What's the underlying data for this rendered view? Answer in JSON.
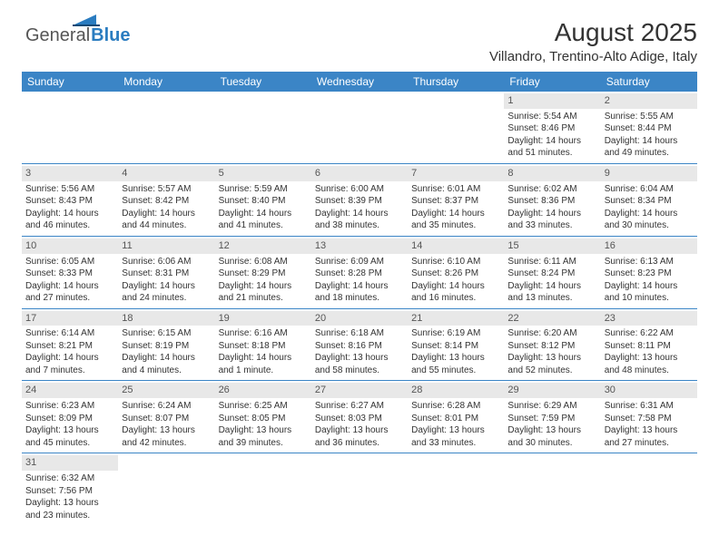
{
  "logo": {
    "part1": "General",
    "part2": "Blue"
  },
  "header": {
    "title": "August 2025",
    "subtitle": "Villandro, Trentino-Alto Adige, Italy"
  },
  "colors": {
    "header_bg": "#3b85c6",
    "header_text": "#ffffff",
    "daynum_bg": "#e8e8e8",
    "border": "#3b85c6",
    "logo_blue": "#2a7cc0"
  },
  "weekdays": [
    "Sunday",
    "Monday",
    "Tuesday",
    "Wednesday",
    "Thursday",
    "Friday",
    "Saturday"
  ],
  "weeks": [
    [
      null,
      null,
      null,
      null,
      null,
      {
        "day": "1",
        "sunrise": "Sunrise: 5:54 AM",
        "sunset": "Sunset: 8:46 PM",
        "daylight": "Daylight: 14 hours and 51 minutes."
      },
      {
        "day": "2",
        "sunrise": "Sunrise: 5:55 AM",
        "sunset": "Sunset: 8:44 PM",
        "daylight": "Daylight: 14 hours and 49 minutes."
      }
    ],
    [
      {
        "day": "3",
        "sunrise": "Sunrise: 5:56 AM",
        "sunset": "Sunset: 8:43 PM",
        "daylight": "Daylight: 14 hours and 46 minutes."
      },
      {
        "day": "4",
        "sunrise": "Sunrise: 5:57 AM",
        "sunset": "Sunset: 8:42 PM",
        "daylight": "Daylight: 14 hours and 44 minutes."
      },
      {
        "day": "5",
        "sunrise": "Sunrise: 5:59 AM",
        "sunset": "Sunset: 8:40 PM",
        "daylight": "Daylight: 14 hours and 41 minutes."
      },
      {
        "day": "6",
        "sunrise": "Sunrise: 6:00 AM",
        "sunset": "Sunset: 8:39 PM",
        "daylight": "Daylight: 14 hours and 38 minutes."
      },
      {
        "day": "7",
        "sunrise": "Sunrise: 6:01 AM",
        "sunset": "Sunset: 8:37 PM",
        "daylight": "Daylight: 14 hours and 35 minutes."
      },
      {
        "day": "8",
        "sunrise": "Sunrise: 6:02 AM",
        "sunset": "Sunset: 8:36 PM",
        "daylight": "Daylight: 14 hours and 33 minutes."
      },
      {
        "day": "9",
        "sunrise": "Sunrise: 6:04 AM",
        "sunset": "Sunset: 8:34 PM",
        "daylight": "Daylight: 14 hours and 30 minutes."
      }
    ],
    [
      {
        "day": "10",
        "sunrise": "Sunrise: 6:05 AM",
        "sunset": "Sunset: 8:33 PM",
        "daylight": "Daylight: 14 hours and 27 minutes."
      },
      {
        "day": "11",
        "sunrise": "Sunrise: 6:06 AM",
        "sunset": "Sunset: 8:31 PM",
        "daylight": "Daylight: 14 hours and 24 minutes."
      },
      {
        "day": "12",
        "sunrise": "Sunrise: 6:08 AM",
        "sunset": "Sunset: 8:29 PM",
        "daylight": "Daylight: 14 hours and 21 minutes."
      },
      {
        "day": "13",
        "sunrise": "Sunrise: 6:09 AM",
        "sunset": "Sunset: 8:28 PM",
        "daylight": "Daylight: 14 hours and 18 minutes."
      },
      {
        "day": "14",
        "sunrise": "Sunrise: 6:10 AM",
        "sunset": "Sunset: 8:26 PM",
        "daylight": "Daylight: 14 hours and 16 minutes."
      },
      {
        "day": "15",
        "sunrise": "Sunrise: 6:11 AM",
        "sunset": "Sunset: 8:24 PM",
        "daylight": "Daylight: 14 hours and 13 minutes."
      },
      {
        "day": "16",
        "sunrise": "Sunrise: 6:13 AM",
        "sunset": "Sunset: 8:23 PM",
        "daylight": "Daylight: 14 hours and 10 minutes."
      }
    ],
    [
      {
        "day": "17",
        "sunrise": "Sunrise: 6:14 AM",
        "sunset": "Sunset: 8:21 PM",
        "daylight": "Daylight: 14 hours and 7 minutes."
      },
      {
        "day": "18",
        "sunrise": "Sunrise: 6:15 AM",
        "sunset": "Sunset: 8:19 PM",
        "daylight": "Daylight: 14 hours and 4 minutes."
      },
      {
        "day": "19",
        "sunrise": "Sunrise: 6:16 AM",
        "sunset": "Sunset: 8:18 PM",
        "daylight": "Daylight: 14 hours and 1 minute."
      },
      {
        "day": "20",
        "sunrise": "Sunrise: 6:18 AM",
        "sunset": "Sunset: 8:16 PM",
        "daylight": "Daylight: 13 hours and 58 minutes."
      },
      {
        "day": "21",
        "sunrise": "Sunrise: 6:19 AM",
        "sunset": "Sunset: 8:14 PM",
        "daylight": "Daylight: 13 hours and 55 minutes."
      },
      {
        "day": "22",
        "sunrise": "Sunrise: 6:20 AM",
        "sunset": "Sunset: 8:12 PM",
        "daylight": "Daylight: 13 hours and 52 minutes."
      },
      {
        "day": "23",
        "sunrise": "Sunrise: 6:22 AM",
        "sunset": "Sunset: 8:11 PM",
        "daylight": "Daylight: 13 hours and 48 minutes."
      }
    ],
    [
      {
        "day": "24",
        "sunrise": "Sunrise: 6:23 AM",
        "sunset": "Sunset: 8:09 PM",
        "daylight": "Daylight: 13 hours and 45 minutes."
      },
      {
        "day": "25",
        "sunrise": "Sunrise: 6:24 AM",
        "sunset": "Sunset: 8:07 PM",
        "daylight": "Daylight: 13 hours and 42 minutes."
      },
      {
        "day": "26",
        "sunrise": "Sunrise: 6:25 AM",
        "sunset": "Sunset: 8:05 PM",
        "daylight": "Daylight: 13 hours and 39 minutes."
      },
      {
        "day": "27",
        "sunrise": "Sunrise: 6:27 AM",
        "sunset": "Sunset: 8:03 PM",
        "daylight": "Daylight: 13 hours and 36 minutes."
      },
      {
        "day": "28",
        "sunrise": "Sunrise: 6:28 AM",
        "sunset": "Sunset: 8:01 PM",
        "daylight": "Daylight: 13 hours and 33 minutes."
      },
      {
        "day": "29",
        "sunrise": "Sunrise: 6:29 AM",
        "sunset": "Sunset: 7:59 PM",
        "daylight": "Daylight: 13 hours and 30 minutes."
      },
      {
        "day": "30",
        "sunrise": "Sunrise: 6:31 AM",
        "sunset": "Sunset: 7:58 PM",
        "daylight": "Daylight: 13 hours and 27 minutes."
      }
    ],
    [
      {
        "day": "31",
        "sunrise": "Sunrise: 6:32 AM",
        "sunset": "Sunset: 7:56 PM",
        "daylight": "Daylight: 13 hours and 23 minutes."
      },
      null,
      null,
      null,
      null,
      null,
      null
    ]
  ]
}
